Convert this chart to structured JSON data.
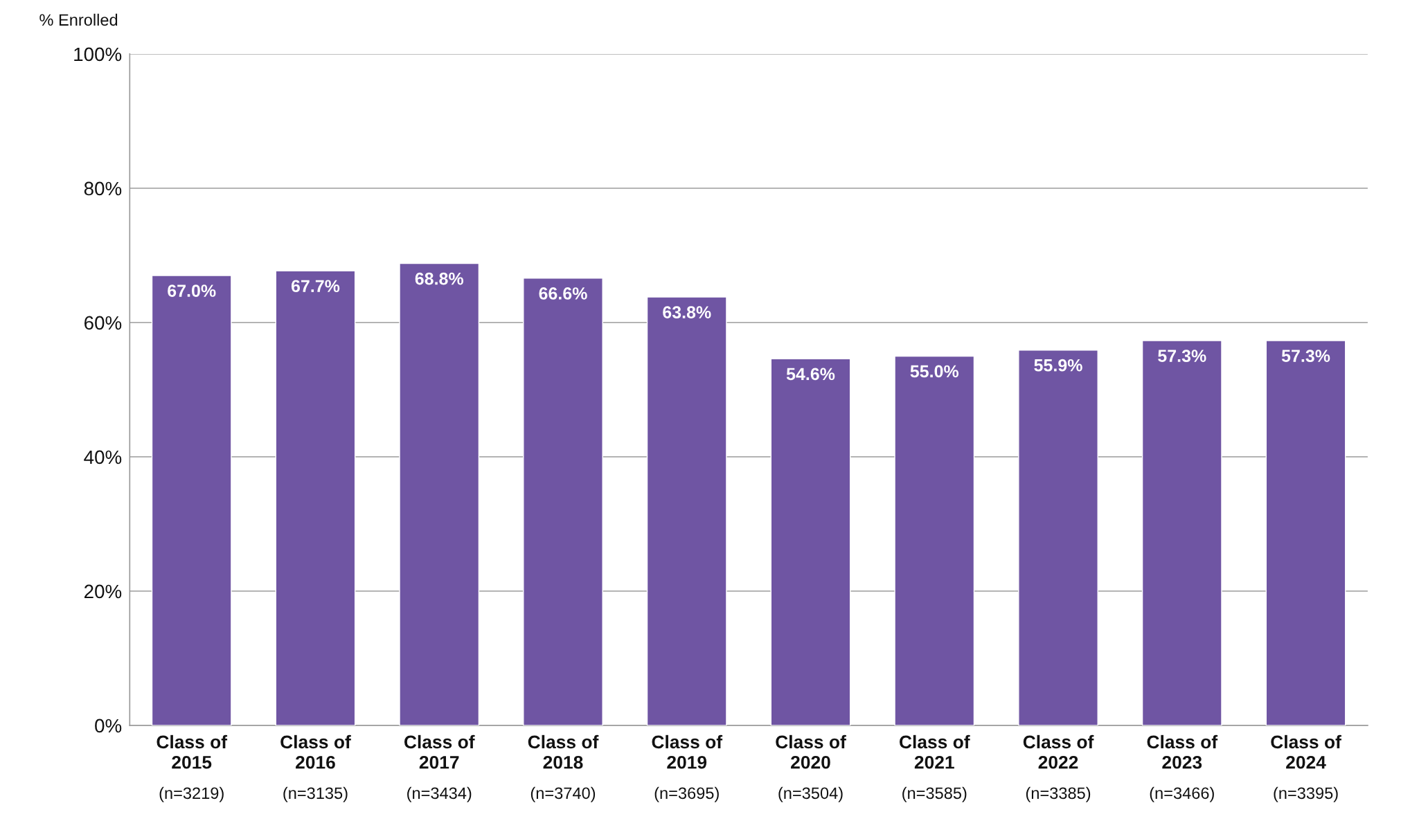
{
  "chart_data": {
    "type": "bar",
    "ylabel": "% Enrolled",
    "categories": [
      "Class of\n2015\n(n=3219)",
      "Class of\n2016\n(n=3135)",
      "Class of\n2017\n(n=3434)",
      "Class of\n2018\n(n=3740)",
      "Class of\n2019\n(n=3695)",
      "Class of\n2020\n(n=3504)",
      "Class of\n2021\n(n=3585)",
      "Class of\n2022\n(n=3385)",
      "Class of\n2023\n(n=3466)",
      "Class of\n2024\n(n=3395)"
    ],
    "values": [
      67.0,
      67.7,
      68.8,
      66.6,
      63.8,
      54.6,
      55.0,
      55.9,
      57.3,
      57.3
    ],
    "value_labels": [
      "67.0%",
      "67.7%",
      "68.8%",
      "66.6%",
      "63.8%",
      "54.6%",
      "55.0%",
      "55.9%",
      "57.3%",
      "57.3%"
    ],
    "color": "#6f55a3",
    "ylim": [
      0,
      100
    ],
    "yticks": [
      {
        "value": 0,
        "label": "0%"
      },
      {
        "value": 20,
        "label": "20%"
      },
      {
        "value": 40,
        "label": "40%"
      },
      {
        "value": 60,
        "label": "60%"
      },
      {
        "value": 80,
        "label": "80%"
      },
      {
        "value": 100,
        "label": "100%"
      }
    ],
    "grid": "y",
    "legend": false
  }
}
